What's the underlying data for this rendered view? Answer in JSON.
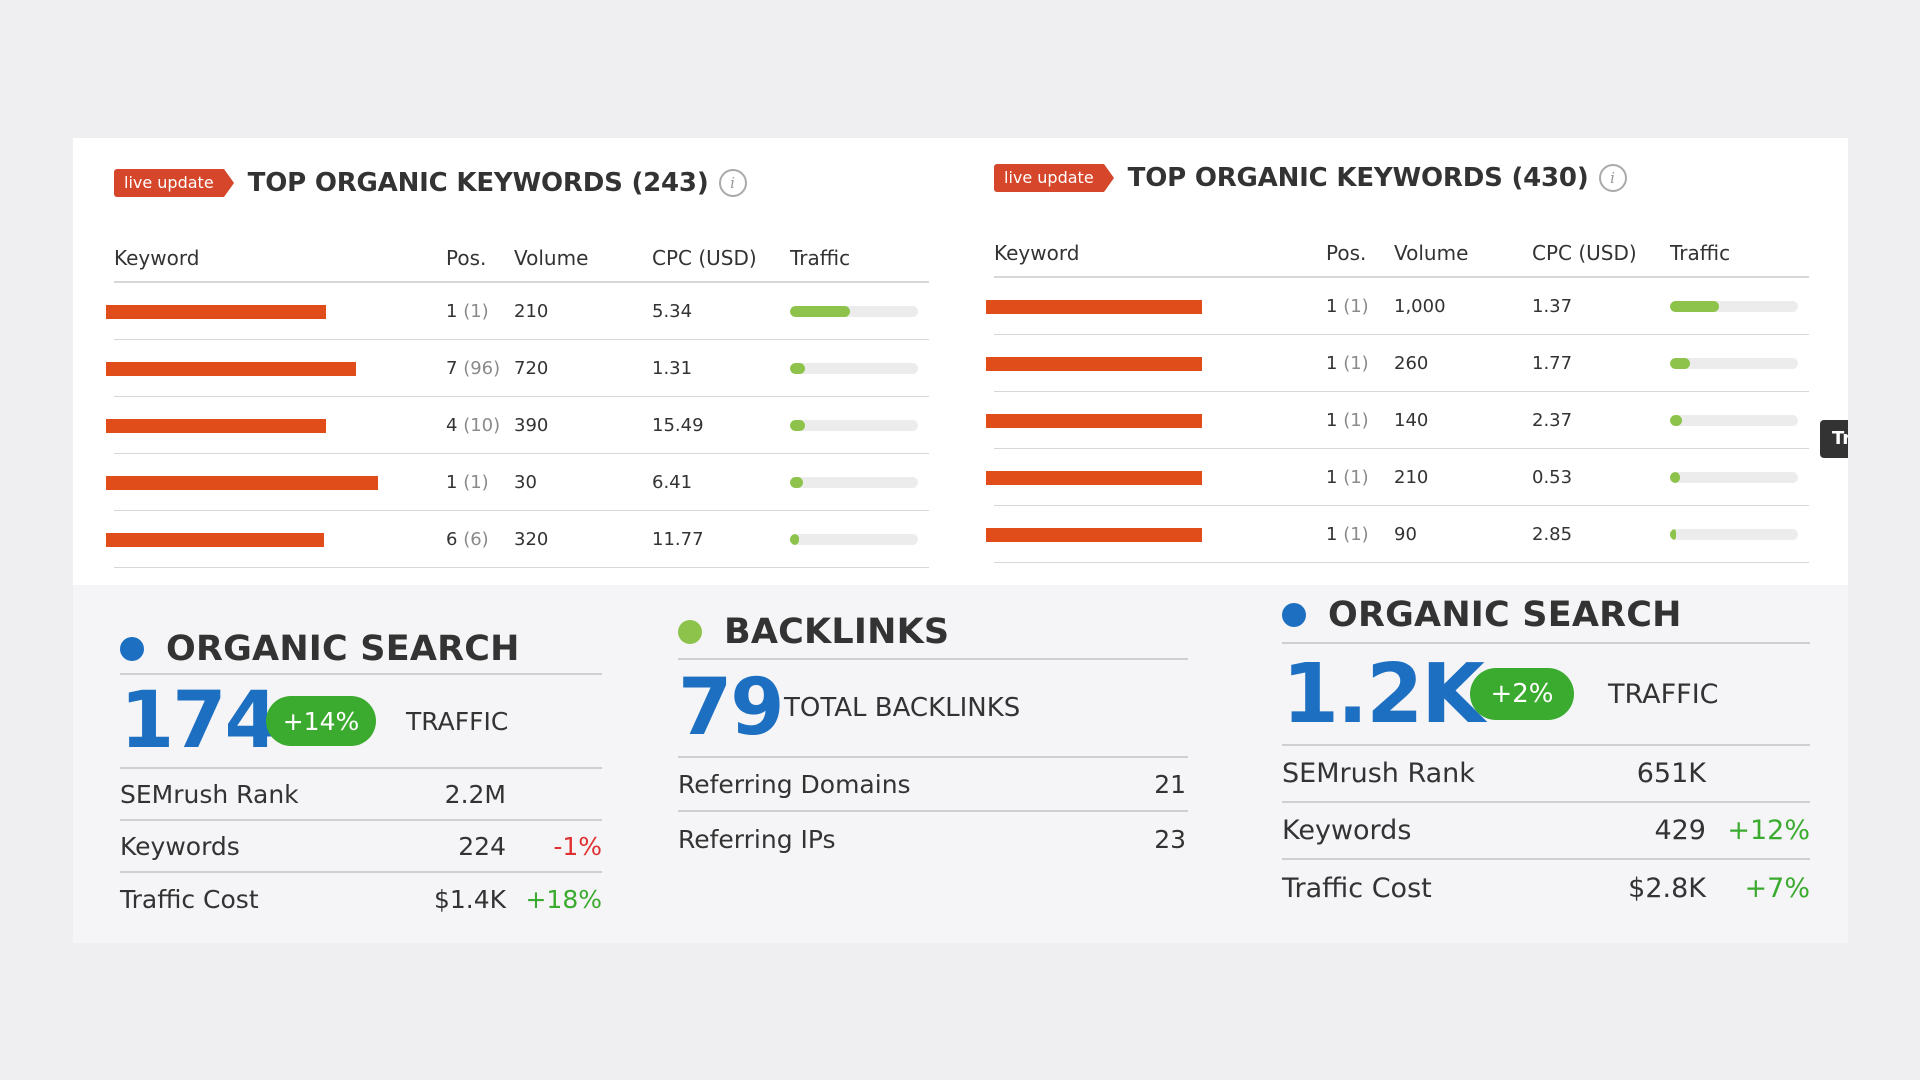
{
  "left_keywords": {
    "badge": "live update",
    "title": "TOP ORGANIC KEYWORDS (243)",
    "columns": [
      "Keyword",
      "Pos.",
      "Volume",
      "CPC (USD)",
      "Traffic"
    ],
    "rows": [
      {
        "pos": "1",
        "pos_prev": "(1)",
        "volume": "210",
        "cpc": "5.34",
        "traffic": 0.47
      },
      {
        "pos": "7",
        "pos_prev": "(96)",
        "volume": "720",
        "cpc": "1.31",
        "traffic": 0.12
      },
      {
        "pos": "4",
        "pos_prev": "(10)",
        "volume": "390",
        "cpc": "15.49",
        "traffic": 0.12
      },
      {
        "pos": "1",
        "pos_prev": "(1)",
        "volume": "30",
        "cpc": "6.41",
        "traffic": 0.1
      },
      {
        "pos": "6",
        "pos_prev": "(6)",
        "volume": "320",
        "cpc": "11.77",
        "traffic": 0.07
      }
    ]
  },
  "right_keywords": {
    "badge": "live update",
    "title": "TOP ORGANIC KEYWORDS (430)",
    "columns": [
      "Keyword",
      "Pos.",
      "Volume",
      "CPC (USD)",
      "Traffic"
    ],
    "rows": [
      {
        "pos": "1",
        "pos_prev": "(1)",
        "volume": "1,000",
        "cpc": "1.37",
        "traffic": 0.38
      },
      {
        "pos": "1",
        "pos_prev": "(1)",
        "volume": "260",
        "cpc": "1.77",
        "traffic": 0.16
      },
      {
        "pos": "1",
        "pos_prev": "(1)",
        "volume": "140",
        "cpc": "2.37",
        "traffic": 0.09
      },
      {
        "pos": "1",
        "pos_prev": "(1)",
        "volume": "210",
        "cpc": "0.53",
        "traffic": 0.08
      },
      {
        "pos": "1",
        "pos_prev": "(1)",
        "volume": "90",
        "cpc": "2.85",
        "traffic": 0.05
      }
    ]
  },
  "organic_left": {
    "title": "ORGANIC SEARCH",
    "dot_color": "#1c6fc1",
    "big_value": "174",
    "change": "+14%",
    "big_label": "TRAFFIC",
    "metrics": [
      {
        "label": "SEMrush Rank",
        "value": "2.2M",
        "delta": ""
      },
      {
        "label": "Keywords",
        "value": "224",
        "delta": "-1%"
      },
      {
        "label": "Traffic Cost",
        "value": "$1.4K",
        "delta": "+18%"
      }
    ]
  },
  "backlinks": {
    "title": "BACKLINKS",
    "dot_color": "#8dc34a",
    "big_value": "79",
    "big_label": "TOTAL BACKLINKS",
    "metrics": [
      {
        "label": "Referring Domains",
        "value": "21"
      },
      {
        "label": "Referring IPs",
        "value": "23"
      }
    ]
  },
  "organic_right": {
    "title": "ORGANIC SEARCH",
    "dot_color": "#1c6fc1",
    "big_value": "1.2K",
    "change": "+2%",
    "big_label": "TRAFFIC",
    "metrics": [
      {
        "label": "SEMrush Rank",
        "value": "651K",
        "delta": ""
      },
      {
        "label": "Keywords",
        "value": "429",
        "delta": "+12%"
      },
      {
        "label": "Traffic Cost",
        "value": "$2.8K",
        "delta": "+7%"
      }
    ]
  },
  "side_tab": {
    "label": "Tr"
  },
  "colors": {
    "accent_blue": "#1c6fc1",
    "positive": "#3bab2f",
    "negative": "#e03131",
    "badge": "#d5462b",
    "bar": "#8dc34a"
  }
}
